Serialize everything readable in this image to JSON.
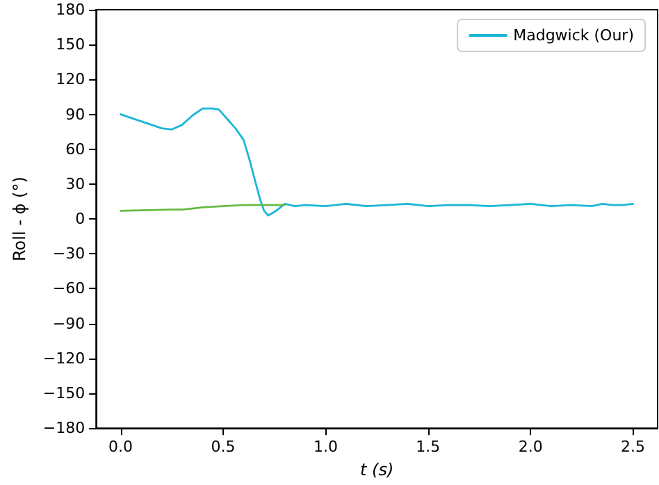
{
  "chart_data": {
    "type": "line",
    "xlabel": "t (s)",
    "ylabel": "Roll - ϕ (°)",
    "xlim": [
      -0.12,
      2.62
    ],
    "xticks": [
      {
        "value": 0,
        "label": "0.0"
      },
      {
        "value": 0.5,
        "label": "0.5"
      },
      {
        "value": 1,
        "label": "1.0"
      },
      {
        "value": 1.5,
        "label": "1.5"
      },
      {
        "value": 2,
        "label": "2.0"
      },
      {
        "value": 2.5,
        "label": "2.5"
      }
    ],
    "ylim": [
      -180,
      180
    ],
    "yticks": [
      -180,
      -150,
      -120,
      -90,
      -60,
      -30,
      0,
      30,
      60,
      90,
      120,
      150,
      180
    ],
    "legend": "top right",
    "grid": false,
    "marker": "none",
    "line_style": "solid",
    "series": [
      {
        "name": "Madgwick (Our)",
        "color": "#1bb6d9",
        "x": [
          0,
          0.1,
          0.2,
          0.25,
          0.3,
          0.35,
          0.4,
          0.45,
          0.48,
          0.52,
          0.56,
          0.6,
          0.63,
          0.66,
          0.68,
          0.7,
          0.72,
          0.75,
          0.78,
          0.8,
          0.85,
          0.9,
          1.0,
          1.1,
          1.2,
          1.3,
          1.4,
          1.5,
          1.6,
          1.7,
          1.8,
          1.9,
          2.0,
          2.1,
          2.2,
          2.3,
          2.35,
          2.4,
          2.45,
          2.5
        ],
        "values": [
          90,
          84,
          78,
          77,
          81,
          89,
          95,
          95,
          94,
          86,
          78,
          68,
          50,
          30,
          17,
          7,
          3,
          6,
          10,
          13,
          11,
          12,
          11,
          13,
          11,
          12,
          13,
          11,
          12,
          12,
          11,
          12,
          13,
          11,
          12,
          11,
          13,
          12,
          12,
          13
        ]
      },
      {
        "color": "#66bb44",
        "x": [
          0,
          0.25,
          0.3,
          0.35,
          0.4,
          0.5,
          0.6,
          0.7,
          0.8
        ],
        "values": [
          7,
          8,
          8,
          9,
          10,
          11,
          12,
          12,
          12
        ]
      }
    ]
  }
}
